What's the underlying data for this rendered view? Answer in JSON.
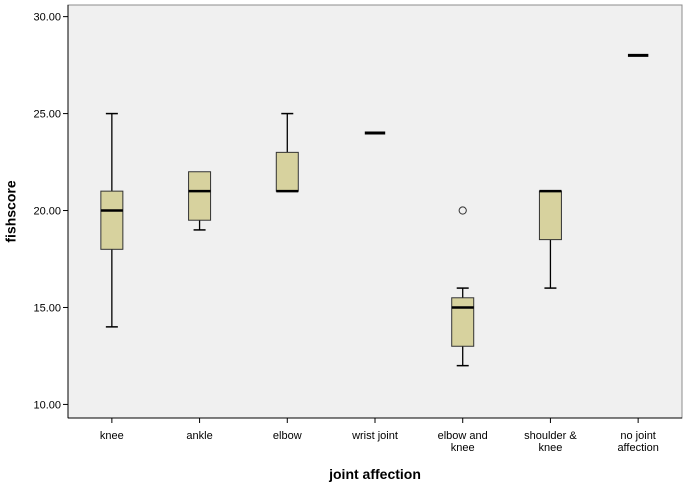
{
  "chart_data": {
    "type": "boxplot",
    "title": "",
    "xlabel": "joint affection",
    "ylabel": "fishscore",
    "ylim": [
      9.3,
      30.6
    ],
    "yticks": [
      "10.00",
      "15.00",
      "20.00",
      "25.00",
      "30.00"
    ],
    "ytick_values": [
      10,
      15,
      20,
      25,
      30
    ],
    "grid": false,
    "colors": {
      "box_fill": "#d7d29e",
      "plot_bg": "#f0f0f0",
      "stroke": "#000000"
    },
    "categories": [
      {
        "label_lines": [
          "knee"
        ],
        "whisker_low": 14,
        "q1": 18,
        "median": 20,
        "q3": 21,
        "whisker_high": 25,
        "outliers": []
      },
      {
        "label_lines": [
          "ankle"
        ],
        "whisker_low": 19,
        "q1": 19.5,
        "median": 21,
        "q3": 22,
        "whisker_high": 22,
        "outliers": []
      },
      {
        "label_lines": [
          "elbow"
        ],
        "whisker_low": 21,
        "q1": 21,
        "median": 21,
        "q3": 23,
        "whisker_high": 25,
        "outliers": []
      },
      {
        "label_lines": [
          "wrist joint"
        ],
        "whisker_low": 24,
        "q1": 24,
        "median": 24,
        "q3": 24,
        "whisker_high": 24,
        "outliers": []
      },
      {
        "label_lines": [
          "elbow and",
          "knee"
        ],
        "whisker_low": 12,
        "q1": 13,
        "median": 15,
        "q3": 15.5,
        "whisker_high": 16,
        "outliers": [
          20
        ]
      },
      {
        "label_lines": [
          "shoulder &",
          "knee"
        ],
        "whisker_low": 16,
        "q1": 18.5,
        "median": 21,
        "q3": 21,
        "whisker_high": 21,
        "outliers": []
      },
      {
        "label_lines": [
          "no joint",
          "affection"
        ],
        "whisker_low": 28,
        "q1": 28,
        "median": 28,
        "q3": 28,
        "whisker_high": 28,
        "outliers": []
      }
    ]
  }
}
